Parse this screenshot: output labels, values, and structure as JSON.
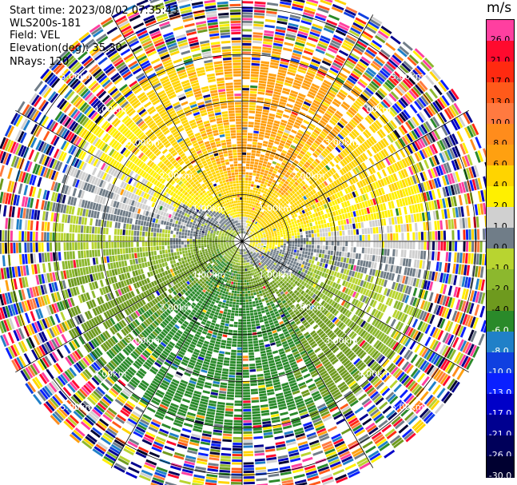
{
  "header": {
    "start_time": "Start time: 2023/08/02 07:35:43",
    "instrument": "WLS200s-181",
    "field": "Field: VEL",
    "elevation": "Elevation(deg): 35.30",
    "nrays": "NRays: 120"
  },
  "colorbar": {
    "unit": "m/s",
    "bins": [
      {
        "label": "26.0",
        "color": "#ff3fa0",
        "text_color": "#000000"
      },
      {
        "label": "21.0",
        "color": "#ff0a2e",
        "text_color": "#000000"
      },
      {
        "label": "17.0",
        "color": "#ff2a10",
        "text_color": "#000000"
      },
      {
        "label": "13.0",
        "color": "#ff5a1a",
        "text_color": "#000000"
      },
      {
        "label": "10.0",
        "color": "#ff7a40",
        "text_color": "#000000"
      },
      {
        "label": "8.0",
        "color": "#ff8c1c",
        "text_color": "#000000"
      },
      {
        "label": "6.0",
        "color": "#ffa010",
        "text_color": "#000000"
      },
      {
        "label": "4.0",
        "color": "#ffd400",
        "text_color": "#000000"
      },
      {
        "label": "2.0",
        "color": "#fff000",
        "text_color": "#000000"
      },
      {
        "label": "1.0",
        "color": "#d0d0d0",
        "text_color": "#000000"
      },
      {
        "label": "0.0",
        "color": "#707d88",
        "text_color": "#000000"
      },
      {
        "label": "-1.0",
        "color": "#b8d430",
        "text_color": "#000000"
      },
      {
        "label": "-2.0",
        "color": "#8cb82e",
        "text_color": "#000000"
      },
      {
        "label": "-4.0",
        "color": "#6e9a1e",
        "text_color": "#000000"
      },
      {
        "label": "-6.0",
        "color": "#2a8a2a",
        "text_color": "#ffffff"
      },
      {
        "label": "-8.0",
        "color": "#2080c8",
        "text_color": "#ffffff"
      },
      {
        "label": "-10.0",
        "color": "#1040e0",
        "text_color": "#ffffff"
      },
      {
        "label": "-13.0",
        "color": "#0a20ff",
        "text_color": "#ffffff"
      },
      {
        "label": "-17.0",
        "color": "#0000c8",
        "text_color": "#ffffff"
      },
      {
        "label": "-21.0",
        "color": "#000090",
        "text_color": "#ffffff"
      },
      {
        "label": "-26.0",
        "color": "#00005a",
        "text_color": "#ffffff"
      },
      {
        "label": "-30.0",
        "color": "#000030",
        "text_color": "#ffffff"
      }
    ]
  },
  "chart_data": {
    "type": "heatmap",
    "projection": "polar",
    "field": "VEL",
    "unit": "m/s",
    "elevation_deg": 35.3,
    "n_rays": 120,
    "range_rings_km": [
      1,
      2,
      3,
      4,
      5
    ],
    "ring_labels": [
      "1.00km",
      "2.00km",
      "3.00km",
      "4.00km",
      "5.00km"
    ],
    "spoke_angles_deg": [
      0,
      30,
      60,
      90,
      120,
      150,
      180,
      210,
      240,
      270,
      300,
      330
    ],
    "max_range_km": 5.6,
    "valid_data_range_km": 4.4,
    "velocity_structure": {
      "inbound_max_azimuth_deg": 15,
      "inbound_peak_ms": 5.5,
      "outbound_peak_ms": -6.5,
      "near_field_swirl": true
    }
  }
}
